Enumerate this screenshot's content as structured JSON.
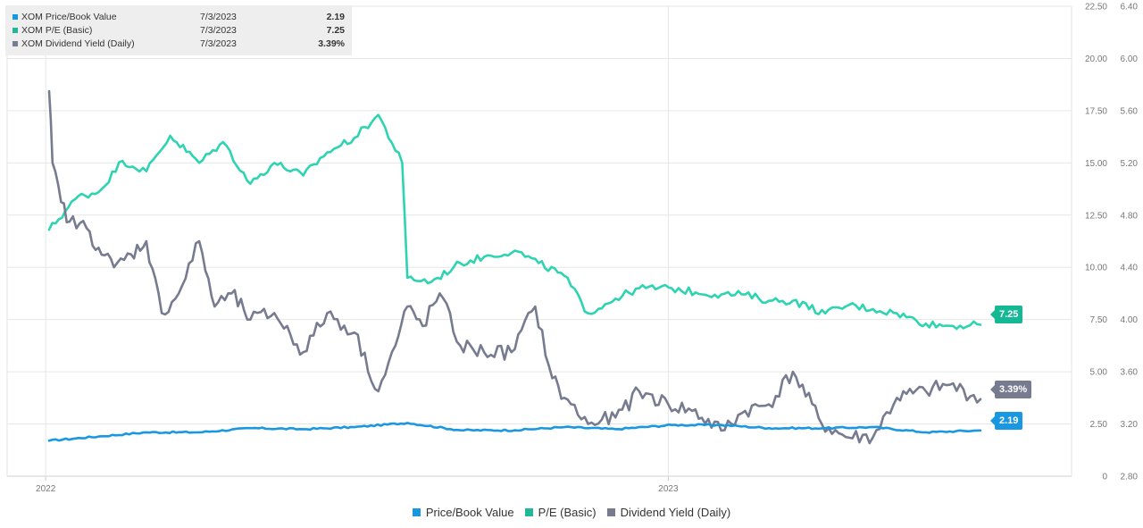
{
  "chart_data": {
    "type": "line",
    "x_range": [
      "2022-01-03",
      "2023-07-03"
    ],
    "x_ticks": [
      "2022",
      "2023"
    ],
    "y_left_ticks": [
      "22.50",
      "20.00",
      "17.50",
      "15.00",
      "12.50",
      "10.00",
      "7.50",
      "5.00",
      "2.50",
      "0"
    ],
    "y_left_range": [
      0,
      22.5
    ],
    "y_right_ticks": [
      "6.40",
      "6.00",
      "5.60",
      "5.20",
      "4.80",
      "4.40",
      "4.00",
      "3.60",
      "3.20",
      "2.80"
    ],
    "y_right_range": [
      2.8,
      6.4
    ],
    "grid": true,
    "legend_position": "bottom-center",
    "series": [
      {
        "name": "Price/Book Value",
        "color": "#1997e0",
        "axis": "left",
        "x": [
          "2022-01-03",
          "2022-02-01",
          "2022-03-01",
          "2022-04-01",
          "2022-05-02",
          "2022-06-01",
          "2022-07-01",
          "2022-08-01",
          "2022-09-01",
          "2022-10-03",
          "2022-11-01",
          "2022-12-01",
          "2023-01-03",
          "2023-02-01",
          "2023-03-01",
          "2023-04-03",
          "2023-05-01",
          "2023-06-01",
          "2023-07-03"
        ],
        "y": [
          1.7,
          1.9,
          2.1,
          2.1,
          2.3,
          2.25,
          2.35,
          2.55,
          2.2,
          2.2,
          2.35,
          2.25,
          2.45,
          2.45,
          2.3,
          2.3,
          2.35,
          2.1,
          2.19
        ]
      },
      {
        "name": "P/E (Basic)",
        "color": "#2ed3b1",
        "axis": "left",
        "x": [
          "2022-01-03",
          "2022-01-20",
          "2022-02-01",
          "2022-02-15",
          "2022-03-01",
          "2022-03-15",
          "2022-04-01",
          "2022-04-15",
          "2022-05-01",
          "2022-05-15",
          "2022-06-01",
          "2022-06-15",
          "2022-07-01",
          "2022-07-15",
          "2022-07-29",
          "2022-08-01",
          "2022-08-15",
          "2022-09-01",
          "2022-09-15",
          "2022-10-03",
          "2022-10-17",
          "2022-11-01",
          "2022-11-15",
          "2022-12-01",
          "2022-12-15",
          "2023-01-03",
          "2023-01-17",
          "2023-02-01",
          "2023-02-15",
          "2023-03-01",
          "2023-03-15",
          "2023-04-03",
          "2023-04-17",
          "2023-05-01",
          "2023-05-15",
          "2023-06-01",
          "2023-06-15",
          "2023-07-03"
        ],
        "y": [
          11.8,
          13.4,
          13.6,
          15.1,
          14.6,
          16.3,
          15.0,
          16.0,
          14.0,
          15.0,
          14.4,
          15.5,
          16.2,
          17.3,
          15.0,
          9.5,
          9.3,
          10.2,
          10.5,
          10.8,
          10.2,
          9.6,
          7.8,
          8.5,
          9.0,
          9.0,
          8.8,
          8.7,
          8.7,
          8.4,
          8.4,
          7.8,
          8.2,
          8.0,
          7.8,
          7.3,
          7.2,
          7.25
        ]
      },
      {
        "name": "Dividend Yield (Daily)",
        "color": "#767b8f",
        "axis": "right",
        "x": [
          "2022-01-03",
          "2022-01-05",
          "2022-01-10",
          "2022-01-15",
          "2022-01-25",
          "2022-02-01",
          "2022-02-10",
          "2022-02-20",
          "2022-03-01",
          "2022-03-10",
          "2022-03-20",
          "2022-04-01",
          "2022-04-10",
          "2022-04-20",
          "2022-05-01",
          "2022-05-15",
          "2022-06-01",
          "2022-06-15",
          "2022-07-01",
          "2022-07-15",
          "2022-07-25",
          "2022-08-01",
          "2022-08-10",
          "2022-08-20",
          "2022-09-01",
          "2022-09-15",
          "2022-10-01",
          "2022-10-15",
          "2022-10-25",
          "2022-11-01",
          "2022-11-15",
          "2022-12-01",
          "2022-12-15",
          "2023-01-01",
          "2023-01-15",
          "2023-02-01",
          "2023-02-15",
          "2023-03-01",
          "2023-03-15",
          "2023-04-01",
          "2023-04-15",
          "2023-05-01",
          "2023-05-15",
          "2023-06-01",
          "2023-06-15",
          "2023-07-03"
        ],
        "y": [
          5.75,
          5.2,
          4.9,
          4.75,
          4.7,
          4.55,
          4.4,
          4.5,
          4.6,
          4.05,
          4.2,
          4.6,
          4.1,
          4.2,
          4.0,
          4.05,
          3.75,
          4.05,
          3.9,
          3.45,
          3.8,
          4.1,
          3.95,
          4.2,
          3.8,
          3.75,
          3.75,
          4.1,
          3.55,
          3.4,
          3.2,
          3.25,
          3.45,
          3.35,
          3.3,
          3.15,
          3.3,
          3.35,
          3.6,
          3.2,
          3.1,
          3.1,
          3.4,
          3.45,
          3.5,
          3.39
        ]
      }
    ],
    "end_labels": [
      "7.25",
      "3.39%",
      "2.19"
    ]
  },
  "infobox": {
    "rows": [
      {
        "name": "XOM Price/Book Value",
        "date": "7/3/2023",
        "value": "2.19",
        "color": "#1997e0"
      },
      {
        "name": "XOM P/E (Basic)",
        "date": "7/3/2023",
        "value": "7.25",
        "color": "#1fb99a"
      },
      {
        "name": "XOM Dividend Yield (Daily)",
        "date": "7/3/2023",
        "value": "3.39%",
        "color": "#767b8f"
      }
    ]
  },
  "legend": {
    "items": [
      {
        "label": "Price/Book Value",
        "color": "#1997e0"
      },
      {
        "label": "P/E (Basic)",
        "color": "#1fb99a"
      },
      {
        "label": "Dividend Yield (Daily)",
        "color": "#767b8f"
      }
    ]
  }
}
